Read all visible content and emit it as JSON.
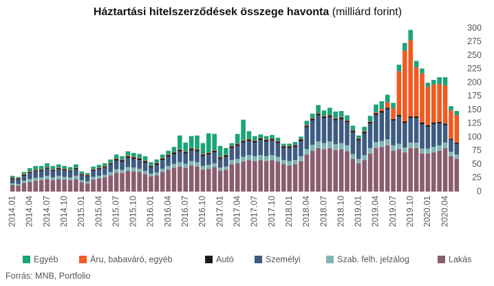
{
  "chart_data": {
    "type": "stacked_bar",
    "title": "Háztartási hitelszerződések összege havonta",
    "subtitle": "(milliárd forint)",
    "source": "Forrás: MNB, Portfolio",
    "categories": [
      "2014.01",
      null,
      null,
      "2014.04",
      null,
      null,
      "2014.07",
      null,
      null,
      "2014.10",
      null,
      null,
      "2015.01",
      null,
      null,
      "2015.04",
      null,
      null,
      "2015.07",
      null,
      null,
      "2015.10",
      null,
      null,
      "2016.01",
      null,
      null,
      "2016.04",
      null,
      null,
      "2016.07",
      null,
      null,
      "2016.10",
      null,
      null,
      "2017.01",
      null,
      null,
      "2017.04",
      null,
      null,
      "2017.07",
      null,
      null,
      "2017.10",
      null,
      null,
      "2018.01",
      null,
      null,
      "2018.04",
      null,
      null,
      "2018.07",
      null,
      null,
      "2018.10",
      null,
      null,
      "2019.01",
      null,
      null,
      "2019.04",
      null,
      null,
      "2019.07",
      null,
      null,
      "2019.10",
      null,
      null,
      "2020.01",
      null,
      null,
      "2020.04",
      null,
      null
    ],
    "series": [
      {
        "name": "Lakás",
        "color": "#8a5d6e",
        "values": [
          12,
          11,
          16,
          18,
          20,
          21,
          23,
          21,
          23,
          22,
          21,
          23,
          17,
          15,
          22,
          24,
          26,
          30,
          35,
          34,
          38,
          37,
          36,
          32,
          28,
          30,
          36,
          40,
          44,
          46,
          44,
          48,
          46,
          40,
          42,
          45,
          38,
          40,
          50,
          52,
          55,
          58,
          56,
          58,
          56,
          58,
          55,
          50,
          48,
          50,
          56,
          68,
          75,
          80,
          78,
          80,
          76,
          78,
          74,
          60,
          52,
          58,
          70,
          80,
          82,
          85,
          75,
          78,
          72,
          80,
          80,
          70,
          70,
          72,
          75,
          80,
          65,
          60
        ]
      },
      {
        "name": "Szab. felh. jelzálog",
        "color": "#7fb5b2",
        "values": [
          3,
          3,
          4,
          5,
          5,
          5,
          6,
          5,
          6,
          5,
          5,
          6,
          4,
          4,
          5,
          5,
          5,
          6,
          6,
          6,
          7,
          7,
          6,
          6,
          5,
          5,
          6,
          7,
          7,
          8,
          7,
          8,
          8,
          7,
          7,
          7,
          6,
          6,
          8,
          8,
          9,
          9,
          9,
          9,
          9,
          9,
          9,
          8,
          8,
          8,
          9,
          10,
          11,
          12,
          11,
          12,
          11,
          11,
          11,
          9,
          8,
          9,
          10,
          11,
          11,
          11,
          10,
          10,
          9,
          10,
          10,
          9,
          9,
          10,
          10,
          10,
          8,
          8
        ]
      },
      {
        "name": "Személyi",
        "color": "#3e5b82",
        "values": [
          8,
          8,
          9,
          11,
          12,
          12,
          13,
          12,
          12,
          12,
          11,
          12,
          9,
          9,
          11,
          12,
          13,
          14,
          16,
          15,
          17,
          16,
          16,
          15,
          12,
          14,
          16,
          17,
          18,
          20,
          19,
          20,
          20,
          18,
          19,
          20,
          16,
          18,
          22,
          24,
          26,
          26,
          25,
          28,
          27,
          27,
          25,
          22,
          24,
          24,
          28,
          40,
          45,
          48,
          46,
          45,
          44,
          44,
          42,
          40,
          34,
          40,
          45,
          50,
          52,
          55,
          45,
          50,
          45,
          45,
          45,
          45,
          40,
          42,
          40,
          32,
          22,
          20
        ]
      },
      {
        "name": "Autó",
        "color": "#1c1c1c",
        "values": [
          2,
          2,
          2,
          2,
          2,
          2,
          2,
          2,
          2,
          2,
          2,
          2,
          2,
          2,
          2,
          2,
          2,
          2,
          3,
          3,
          3,
          3,
          3,
          3,
          2,
          3,
          3,
          3,
          3,
          3,
          3,
          3,
          3,
          3,
          3,
          3,
          3,
          3,
          3,
          3,
          3,
          3,
          3,
          3,
          3,
          3,
          3,
          3,
          3,
          3,
          3,
          3,
          3,
          3,
          3,
          3,
          3,
          3,
          3,
          3,
          3,
          3,
          3,
          3,
          3,
          3,
          3,
          3,
          3,
          3,
          3,
          3,
          3,
          3,
          3,
          3,
          2,
          2
        ]
      },
      {
        "name": "Áru, babaváró, egyéb",
        "color": "#f15a22",
        "values": [
          1,
          1,
          1,
          1,
          1,
          1,
          1,
          1,
          1,
          1,
          1,
          1,
          1,
          1,
          1,
          1,
          1,
          1,
          1,
          1,
          1,
          1,
          1,
          1,
          1,
          1,
          1,
          1,
          1,
          1,
          1,
          1,
          1,
          1,
          1,
          1,
          1,
          1,
          1,
          1,
          1,
          1,
          1,
          1,
          1,
          1,
          1,
          1,
          1,
          1,
          1,
          1,
          1,
          1,
          1,
          1,
          1,
          1,
          1,
          1,
          1,
          1,
          1,
          2,
          4,
          10,
          20,
          80,
          130,
          140,
          90,
          90,
          70,
          70,
          70,
          70,
          52,
          50
        ]
      },
      {
        "name": "Egyéb",
        "color": "#1ba37a",
        "values": [
          3,
          2,
          4,
          6,
          7,
          6,
          7,
          6,
          6,
          5,
          5,
          6,
          4,
          3,
          5,
          5,
          5,
          6,
          7,
          6,
          8,
          7,
          7,
          8,
          6,
          6,
          6,
          7,
          9,
          25,
          16,
          22,
          25,
          20,
          35,
          30,
          20,
          12,
          5,
          18,
          38,
          14,
          8,
          6,
          6,
          6,
          6,
          4,
          4,
          5,
          4,
          8,
          8,
          15,
          10,
          13,
          12,
          11,
          9,
          8,
          5,
          8,
          10,
          14,
          14,
          14,
          10,
          12,
          14,
          19,
          12,
          9,
          8,
          8,
          12,
          15,
          8,
          8
        ]
      }
    ],
    "ylim": [
      0,
      300
    ],
    "yticks": [
      0,
      25,
      50,
      75,
      100,
      125,
      150,
      175,
      200,
      225,
      250,
      275,
      300
    ],
    "grid": false
  }
}
